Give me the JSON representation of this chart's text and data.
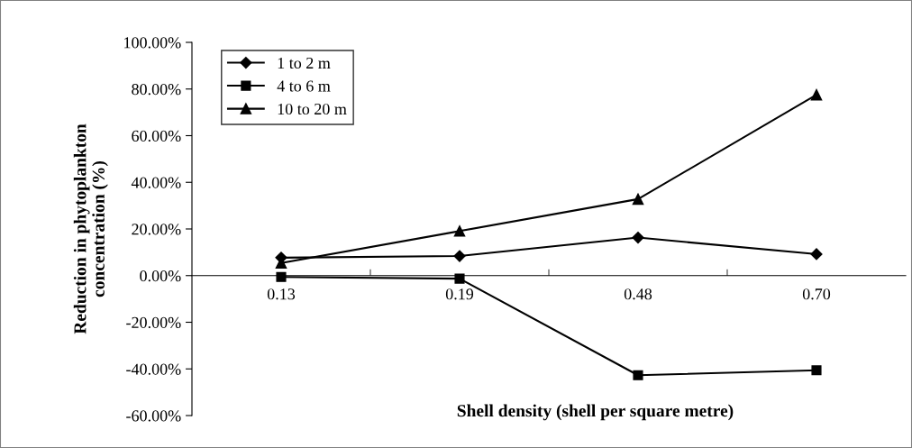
{
  "chart_data": {
    "type": "line",
    "xlabel": "Shell density (shell per square metre)",
    "ylabel": "Reduction in phytoplankton\nconcentration (%)",
    "categories": [
      "0.13",
      "0.19",
      "0.48",
      "0.70"
    ],
    "series": [
      {
        "name": "1 to 2 m",
        "color": "#000000",
        "marker": "diamond",
        "values": [
          7.7,
          8.4,
          16.3,
          9.2
        ]
      },
      {
        "name": "4 to 6 m",
        "color": "#010101",
        "marker": "square",
        "values": [
          -0.6,
          -1.3,
          -42.7,
          -40.6
        ]
      },
      {
        "name": "10 to 20 m",
        "color": "#020202",
        "marker": "triangle",
        "values": [
          5.4,
          19.1,
          32.8,
          77.5
        ]
      }
    ],
    "ylim": [
      -60,
      100
    ],
    "yticks": [
      {
        "value": -60,
        "label": "-60.00%"
      },
      {
        "value": -40,
        "label": "-40.00%"
      },
      {
        "value": -20,
        "label": "-20.00%"
      },
      {
        "value": 0,
        "label": "0.00%"
      },
      {
        "value": 20,
        "label": "20.00%"
      },
      {
        "value": 40,
        "label": "40.00%"
      },
      {
        "value": 60,
        "label": "60.00%"
      },
      {
        "value": 80,
        "label": "80.00%"
      },
      {
        "value": 100,
        "label": "100.00%"
      }
    ],
    "grid": false,
    "legend": "top left",
    "line_style": "solid"
  }
}
